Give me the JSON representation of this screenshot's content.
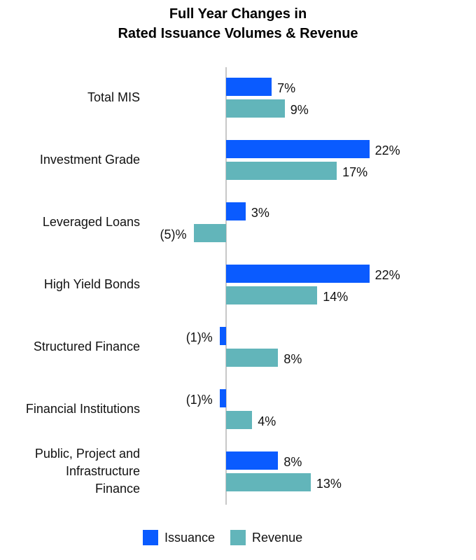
{
  "chart_data": {
    "type": "bar",
    "orientation": "horizontal",
    "title": "Full Year Changes in Rated Issuance Volumes & Revenue",
    "title_lines": [
      "Full Year Changes in",
      "Rated Issuance Volumes & Revenue"
    ],
    "xlabel": "",
    "ylabel": "",
    "grid": false,
    "legend_position": "bottom",
    "categories": [
      "Total MIS",
      "Investment Grade",
      "Leveraged Loans",
      "High Yield Bonds",
      "Structured Finance",
      "Financial Institutions",
      "Public, Project and Infrastructure Finance"
    ],
    "category_lines": [
      [
        "Total MIS"
      ],
      [
        "Investment Grade"
      ],
      [
        "Leveraged Loans"
      ],
      [
        "High Yield Bonds"
      ],
      [
        "Structured Finance"
      ],
      [
        "Financial Institutions"
      ],
      [
        "Public, Project and",
        "Infrastructure",
        "Finance"
      ]
    ],
    "series": [
      {
        "name": "Issuance",
        "color": "#0A5BFF",
        "values": [
          7,
          22,
          3,
          22,
          -1,
          -1,
          8
        ],
        "labels": [
          "7%",
          "22%",
          "3%",
          "22%",
          "(1)%",
          "(1)%",
          "8%"
        ]
      },
      {
        "name": "Revenue",
        "color": "#62B5BA",
        "values": [
          9,
          17,
          -5,
          14,
          8,
          4,
          13
        ],
        "labels": [
          "9%",
          "17%",
          "(5)%",
          "14%",
          "8%",
          "4%",
          "13%"
        ]
      }
    ]
  },
  "legend": {
    "items": [
      {
        "label": "Issuance",
        "color": "#0A5BFF"
      },
      {
        "label": "Revenue",
        "color": "#62B5BA"
      }
    ]
  }
}
